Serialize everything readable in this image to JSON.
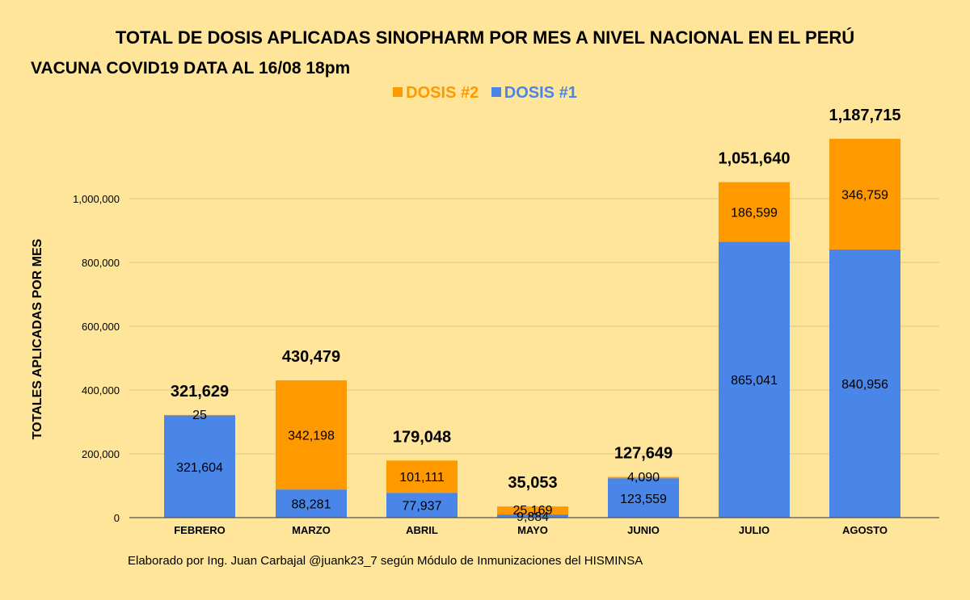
{
  "chart_data": {
    "type": "bar",
    "stacked": true,
    "title": "TOTAL DE DOSIS APLICADAS SINOPHARM POR MES A NIVEL NACIONAL EN EL PERÚ",
    "subtitle": "VACUNA COVID19 DATA AL 16/08  18pm",
    "ylabel": "TOTALES APLICADAS POR MES",
    "xlabel": "",
    "ylim": [
      0,
      1200000
    ],
    "yticks": [
      0,
      200000,
      400000,
      600000,
      800000,
      1000000
    ],
    "ytick_labels": [
      "0",
      "200,000",
      "400,000",
      "600,000",
      "800,000",
      "1,000,000"
    ],
    "categories": [
      "FEBRERO",
      "MARZO",
      "ABRIL",
      "MAYO",
      "JUNIO",
      "JULIO",
      "AGOSTO"
    ],
    "series": [
      {
        "name": "DOSIS #1",
        "color": "#4a86e8",
        "values": [
          321604,
          88281,
          77937,
          9884,
          123559,
          865041,
          840956
        ],
        "labels": [
          "321,604",
          "88,281",
          "77,937",
          "9,884",
          "123,559",
          "865,041",
          "840,956"
        ]
      },
      {
        "name": "DOSIS #2",
        "color": "#ff9900",
        "values": [
          25,
          342198,
          101111,
          25169,
          4090,
          186599,
          346759
        ],
        "labels": [
          "25",
          "342,198",
          "101,111",
          "25,169",
          "4,090",
          "186,599",
          "346,759"
        ]
      }
    ],
    "totals": [
      321629,
      430479,
      179048,
      35053,
      127649,
      1051640,
      1187715
    ],
    "total_labels": [
      "321,629",
      "430,479",
      "179,048",
      "35,053",
      "127,649",
      "1,051,640",
      "1,187,715"
    ],
    "legend": {
      "order": [
        "DOSIS #2",
        "DOSIS #1"
      ],
      "position": "top-center"
    },
    "grid": true
  },
  "footer": "Elaborado por Ing. Juan Carbajal @juank23_7 según Módulo de Inmunizaciones del HISMINSA",
  "legend_labels": {
    "d2": "DOSIS #2",
    "d1": "DOSIS #1"
  }
}
